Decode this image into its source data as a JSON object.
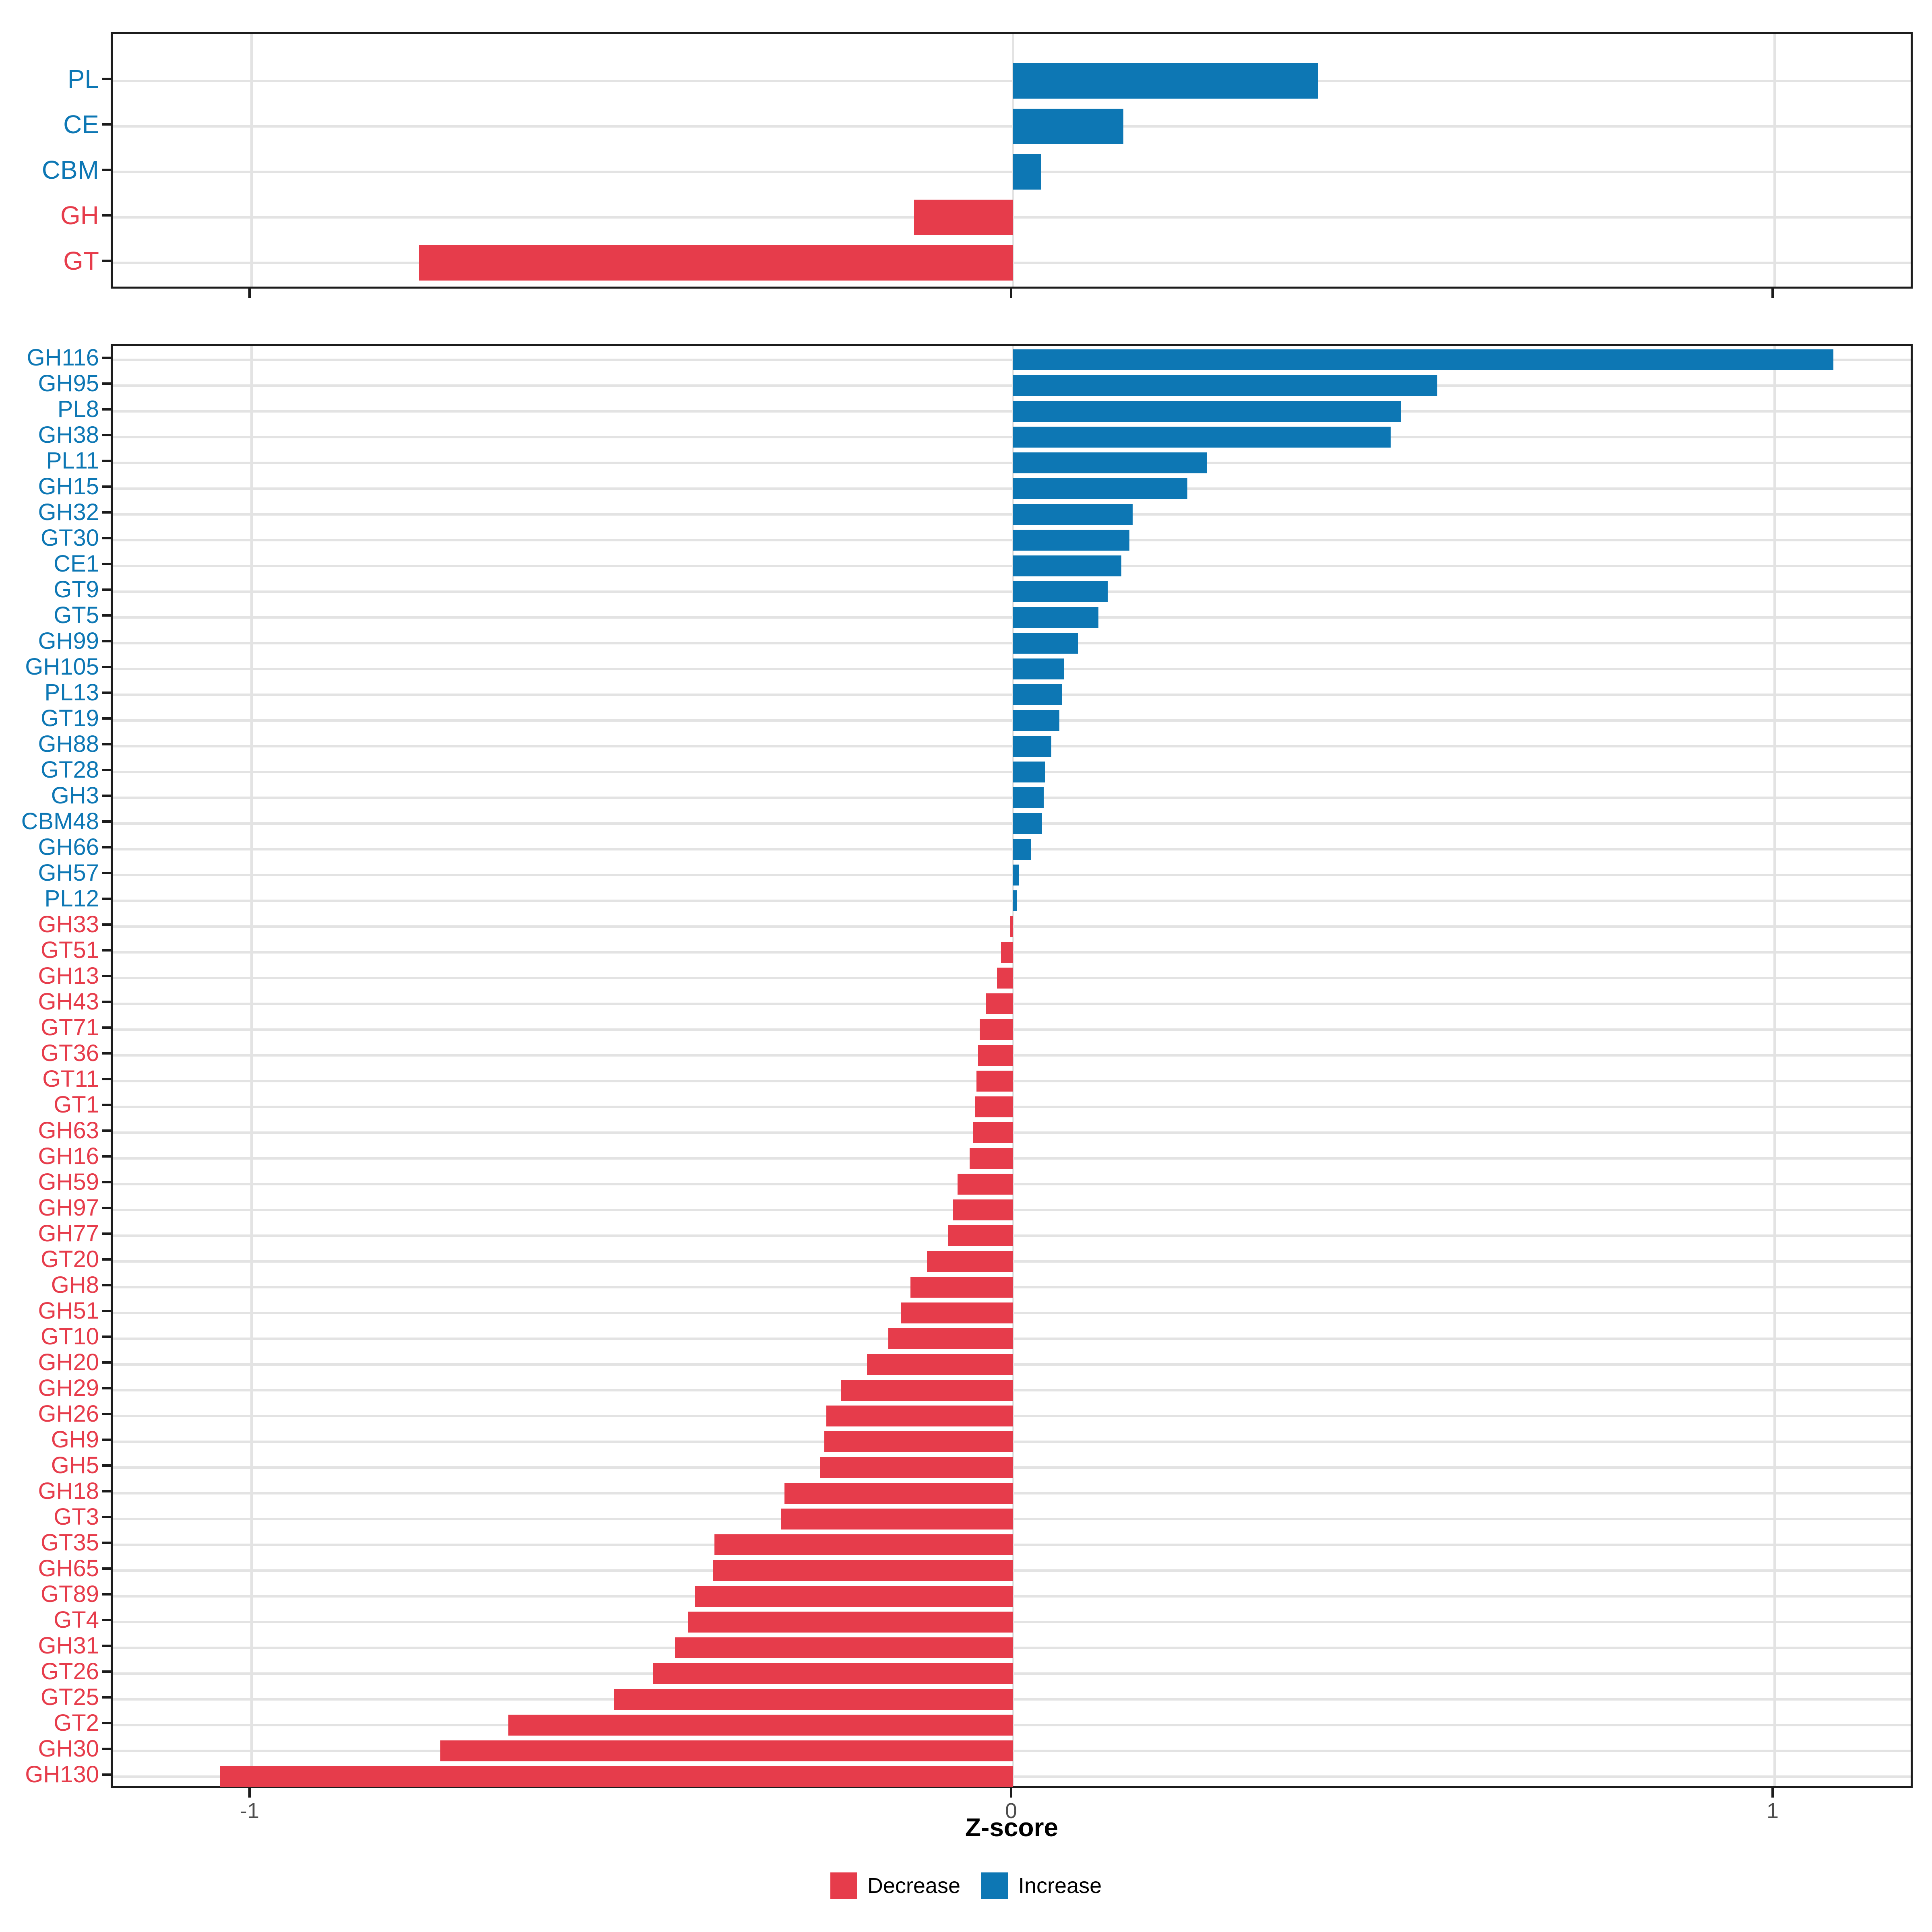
{
  "figure": {
    "background": "#ffffff"
  },
  "axis": {
    "xlabel": "Z-score",
    "tick_labels": [
      "-1",
      "0",
      "1"
    ],
    "tick_values": [
      -1,
      0,
      1
    ],
    "xlim": [
      -1.182,
      1.184
    ]
  },
  "colors": {
    "decrease": "#e63c4b",
    "increase": "#0d77b4",
    "grid": "#e3e3e3",
    "axis_text": "#4d4d4d",
    "panel_border": "#1c1c1c"
  },
  "legend": {
    "items": [
      {
        "label": "Decrease",
        "color": "#e63c4b"
      },
      {
        "label": "Increase",
        "color": "#0d77b4"
      }
    ]
  },
  "chart_data": [
    {
      "type": "bar",
      "orientation": "horizontal",
      "panel": "categories",
      "title": "",
      "xlabel": "Z-score",
      "xlim": [
        -1.182,
        1.184
      ],
      "grid": "on",
      "legend_position": "bottom",
      "categories": [
        "PL",
        "CE",
        "CBM",
        "GH",
        "GT"
      ],
      "values": [
        0.4,
        0.145,
        0.037,
        -0.13,
        -0.78
      ],
      "groups": [
        "Increase",
        "Increase",
        "Increase",
        "Decrease",
        "Decrease"
      ]
    },
    {
      "type": "bar",
      "orientation": "horizontal",
      "panel": "families",
      "title": "",
      "xlabel": "Z-score",
      "xlim": [
        -1.182,
        1.184
      ],
      "grid": "on",
      "legend_position": "bottom",
      "categories": [
        "GH116",
        "GH95",
        "PL8",
        "GH38",
        "PL11",
        "GH15",
        "GH32",
        "GT30",
        "CE1",
        "GT9",
        "GT5",
        "GH99",
        "GH105",
        "PL13",
        "GT19",
        "GH88",
        "GT28",
        "GH3",
        "CBM48",
        "GH66",
        "GH57",
        "PL12",
        "GH33",
        "GT51",
        "GH13",
        "GH43",
        "GT71",
        "GT36",
        "GT11",
        "GT1",
        "GH63",
        "GH16",
        "GH59",
        "GH97",
        "GH77",
        "GT20",
        "GH8",
        "GH51",
        "GT10",
        "GH20",
        "GH29",
        "GH26",
        "GH9",
        "GH5",
        "GH18",
        "GT3",
        "GT35",
        "GH65",
        "GT89",
        "GT4",
        "GH31",
        "GT26",
        "GT25",
        "GT2",
        "GH30",
        "GH130"
      ],
      "values": [
        1.077,
        0.557,
        0.509,
        0.496,
        0.255,
        0.229,
        0.157,
        0.153,
        0.142,
        0.124,
        0.112,
        0.085,
        0.067,
        0.064,
        0.061,
        0.05,
        0.042,
        0.04,
        0.038,
        0.024,
        0.008,
        0.005,
        -0.004,
        -0.016,
        -0.021,
        -0.036,
        -0.044,
        -0.046,
        -0.048,
        -0.05,
        -0.053,
        -0.057,
        -0.073,
        -0.079,
        -0.085,
        -0.113,
        -0.135,
        -0.147,
        -0.164,
        -0.192,
        -0.226,
        -0.245,
        -0.248,
        -0.253,
        -0.3,
        -0.305,
        -0.392,
        -0.394,
        -0.418,
        -0.427,
        -0.444,
        -0.473,
        -0.524,
        -0.663,
        -0.752,
        -1.041
      ],
      "groups": [
        "Increase",
        "Increase",
        "Increase",
        "Increase",
        "Increase",
        "Increase",
        "Increase",
        "Increase",
        "Increase",
        "Increase",
        "Increase",
        "Increase",
        "Increase",
        "Increase",
        "Increase",
        "Increase",
        "Increase",
        "Increase",
        "Increase",
        "Increase",
        "Increase",
        "Increase",
        "Decrease",
        "Decrease",
        "Decrease",
        "Decrease",
        "Decrease",
        "Decrease",
        "Decrease",
        "Decrease",
        "Decrease",
        "Decrease",
        "Decrease",
        "Decrease",
        "Decrease",
        "Decrease",
        "Decrease",
        "Decrease",
        "Decrease",
        "Decrease",
        "Decrease",
        "Decrease",
        "Decrease",
        "Decrease",
        "Decrease",
        "Decrease",
        "Decrease",
        "Decrease",
        "Decrease",
        "Decrease",
        "Decrease",
        "Decrease",
        "Decrease",
        "Decrease",
        "Decrease",
        "Decrease"
      ]
    }
  ]
}
